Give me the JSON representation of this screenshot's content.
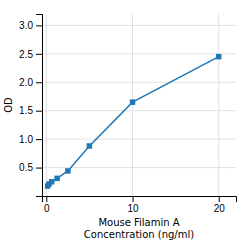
{
  "chart_data": {
    "type": "line",
    "xlabel": [
      "Mouse Filamin A",
      "Concentration (ng/ml)"
    ],
    "ylabel": "OD",
    "x": [
      0.156,
      0.313,
      0.625,
      1.25,
      2.5,
      5.0,
      10.0,
      20.0
    ],
    "values": [
      0.175,
      0.21,
      0.25,
      0.31,
      0.44,
      0.88,
      1.65,
      2.45
    ],
    "xlim": [
      -0.5,
      22
    ],
    "ylim": [
      0.0,
      3.2
    ],
    "xticks": [
      0,
      10,
      20
    ],
    "yticks": [
      0.5,
      {
        "value": 1.0,
        "label": "1.0"
      },
      1.5,
      {
        "value": 2.0,
        "label": "2.0"
      },
      2.5,
      {
        "value": 3.0,
        "label": "3.0"
      }
    ],
    "grid": true,
    "marker": "square"
  }
}
